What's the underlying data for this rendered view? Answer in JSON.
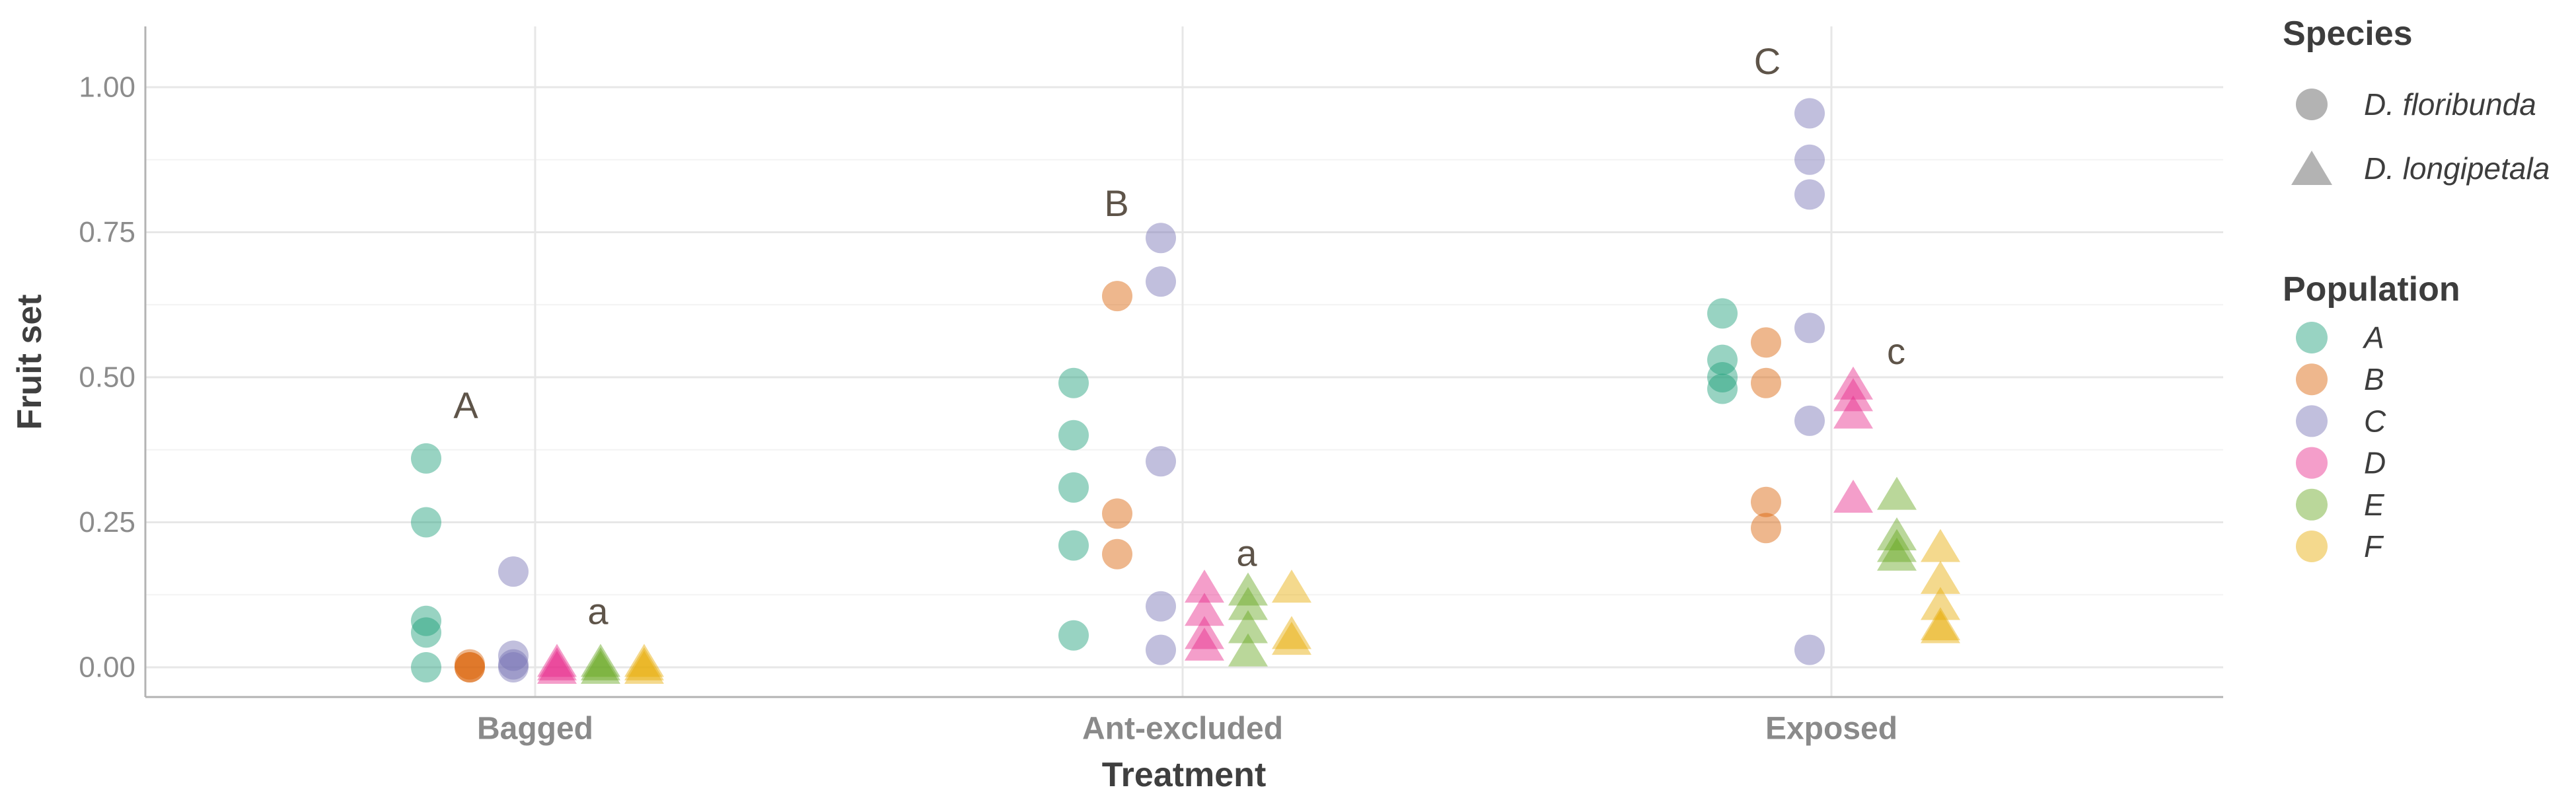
{
  "chart_data": {
    "type": "scatter",
    "title": "",
    "xlabel": "Treatment",
    "ylabel": "Fruit set",
    "x_categories": [
      "Bagged",
      "Ant-excluded",
      "Exposed"
    ],
    "y_ticks": [
      0,
      0.25,
      0.5,
      0.75,
      1
    ],
    "y_tick_labels": [
      "0.00",
      "0.25",
      "0.50",
      "0.75",
      "1.00"
    ],
    "y_minor_ticks": [
      0.125,
      0.375,
      0.625,
      0.875
    ],
    "ylim": [
      -0.05,
      1.11
    ],
    "grid": "on",
    "legend_position": "right",
    "point_alpha": 0.45,
    "palette": {
      "A": "#1B9E77",
      "B": "#D95F02",
      "C": "#7570B3",
      "D": "#E7298A",
      "E": "#66A61E",
      "F": "#E6AB02"
    },
    "population_order": [
      "A",
      "B",
      "C",
      "D",
      "E",
      "F"
    ],
    "species_by_population": {
      "A": "D. floribunda",
      "B": "D. floribunda",
      "C": "D. floribunda",
      "D": "D. longipetala",
      "E": "D. longipetala",
      "F": "D. longipetala"
    },
    "marker_by_population": {
      "A": "circle",
      "B": "circle",
      "C": "circle",
      "D": "triangle",
      "E": "triangle",
      "F": "triangle"
    },
    "series": [
      {
        "treatment": "Bagged",
        "population": "A",
        "values": [
          0.36,
          0.25,
          0.08,
          0.06,
          0.0
        ]
      },
      {
        "treatment": "Bagged",
        "population": "B",
        "values": [
          0.0,
          0.0,
          0.005
        ]
      },
      {
        "treatment": "Bagged",
        "population": "C",
        "values": [
          0.165,
          0.02,
          0.0,
          0.005
        ]
      },
      {
        "treatment": "Bagged",
        "population": "D",
        "values": [
          0.012,
          0.006,
          0.0
        ]
      },
      {
        "treatment": "Bagged",
        "population": "E",
        "values": [
          0.012,
          0.006,
          0.0
        ]
      },
      {
        "treatment": "Bagged",
        "population": "F",
        "values": [
          0.012,
          0.006,
          0.0
        ]
      },
      {
        "treatment": "Ant-excluded",
        "population": "A",
        "values": [
          0.49,
          0.4,
          0.31,
          0.21,
          0.055
        ]
      },
      {
        "treatment": "Ant-excluded",
        "population": "B",
        "values": [
          0.64,
          0.265,
          0.195
        ]
      },
      {
        "treatment": "Ant-excluded",
        "population": "C",
        "values": [
          0.74,
          0.665,
          0.355,
          0.105,
          0.03
        ]
      },
      {
        "treatment": "Ant-excluded",
        "population": "D",
        "values": [
          0.14,
          0.1,
          0.06,
          0.04
        ]
      },
      {
        "treatment": "Ant-excluded",
        "population": "E",
        "values": [
          0.135,
          0.11,
          0.07,
          0.03
        ]
      },
      {
        "treatment": "Ant-excluded",
        "population": "F",
        "values": [
          0.14,
          0.06,
          0.05
        ]
      },
      {
        "treatment": "Exposed",
        "population": "A",
        "values": [
          0.61,
          0.53,
          0.5,
          0.48
        ]
      },
      {
        "treatment": "Exposed",
        "population": "B",
        "values": [
          0.56,
          0.49,
          0.285,
          0.24
        ]
      },
      {
        "treatment": "Exposed",
        "population": "C",
        "values": [
          0.955,
          0.875,
          0.815,
          0.585,
          0.425,
          0.03
        ]
      },
      {
        "treatment": "Exposed",
        "population": "D",
        "values": [
          0.49,
          0.47,
          0.44,
          0.295
        ]
      },
      {
        "treatment": "Exposed",
        "population": "E",
        "values": [
          0.3,
          0.23,
          0.21,
          0.195
        ]
      },
      {
        "treatment": "Exposed",
        "population": "F",
        "values": [
          0.21,
          0.155,
          0.11,
          0.075,
          0.07
        ]
      }
    ],
    "annotations": [
      {
        "text": "A",
        "treatment": "Bagged",
        "x_offset": -105,
        "y": 0.452
      },
      {
        "text": "a",
        "treatment": "Bagged",
        "x_offset": 95,
        "y": 0.097
      },
      {
        "text": "B",
        "treatment": "Ant-excluded",
        "x_offset": -100,
        "y": 0.8
      },
      {
        "text": "a",
        "treatment": "Ant-excluded",
        "x_offset": 97,
        "y": 0.197
      },
      {
        "text": "C",
        "treatment": "Exposed",
        "x_offset": -97,
        "y": 1.045
      },
      {
        "text": "c",
        "treatment": "Exposed",
        "x_offset": 98,
        "y": 0.545
      }
    ]
  },
  "legend": {
    "species_title": "Species",
    "species_items": [
      {
        "label": "D. floribunda",
        "marker": "circle"
      },
      {
        "label": "D. longipetala",
        "marker": "triangle"
      }
    ],
    "species_key_color": "#b3b3b3",
    "population_title": "Population",
    "population_items": [
      {
        "label": "A",
        "color": "#1B9E77"
      },
      {
        "label": "B",
        "color": "#D95F02"
      },
      {
        "label": "C",
        "color": "#7570B3"
      },
      {
        "label": "D",
        "color": "#E7298A"
      },
      {
        "label": "E",
        "color": "#66A61E"
      },
      {
        "label": "F",
        "color": "#E6AB02"
      }
    ]
  },
  "colors": {
    "grid_major": "#e7e7e7",
    "grid_minor": "#f3f3f3",
    "axis_line": "#b3b3b3",
    "annotation_text": "#5e5449"
  }
}
